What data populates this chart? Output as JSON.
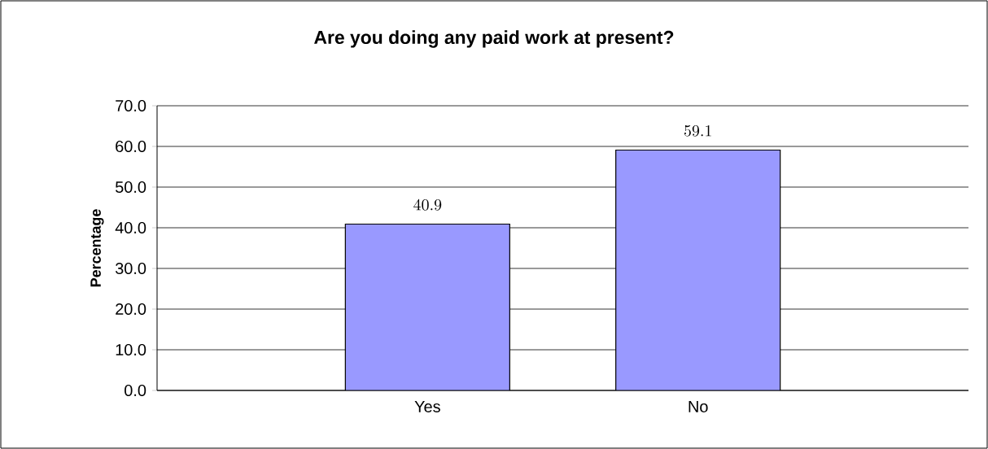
{
  "chart_data": {
    "type": "bar",
    "title": "Are you doing any paid work at present?",
    "ylabel": "Percentage",
    "categories": [
      "Yes",
      "No"
    ],
    "values": [
      40.9,
      59.1
    ],
    "color": "#9999ff",
    "ylim": [
      0,
      70
    ],
    "yticks": [
      {
        "value": 0,
        "label": "0.0"
      },
      {
        "value": 10,
        "label": "10.0"
      },
      {
        "value": 20,
        "label": "20.0"
      },
      {
        "value": 30,
        "label": "30.0"
      },
      {
        "value": 40,
        "label": "40.0"
      },
      {
        "value": 50,
        "label": "50.0"
      },
      {
        "value": 60,
        "label": "60.0"
      },
      {
        "value": 70,
        "label": "70.0"
      }
    ],
    "grid": "y",
    "data_labels": true
  }
}
